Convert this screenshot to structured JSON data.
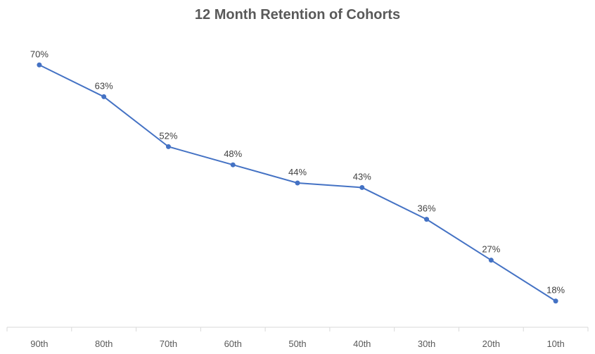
{
  "chart_data": {
    "type": "line",
    "title": "12 Month Retention of Cohorts",
    "xlabel": "",
    "ylabel": "",
    "categories": [
      "90th",
      "80th",
      "70th",
      "60th",
      "50th",
      "40th",
      "30th",
      "20th",
      "10th"
    ],
    "series": [
      {
        "values": [
          70,
          63,
          52,
          48,
          44,
          43,
          36,
          27,
          18
        ],
        "labels": [
          "70%",
          "63%",
          "52%",
          "48%",
          "44%",
          "43%",
          "36%",
          "27%",
          "18%"
        ]
      }
    ],
    "ylim": [
      13,
      75
    ],
    "grid": false,
    "legend": "none",
    "colors": {
      "line": "#4472C4",
      "axis": "#D9D9D9",
      "title": "#595959",
      "labels": "#404040"
    }
  }
}
